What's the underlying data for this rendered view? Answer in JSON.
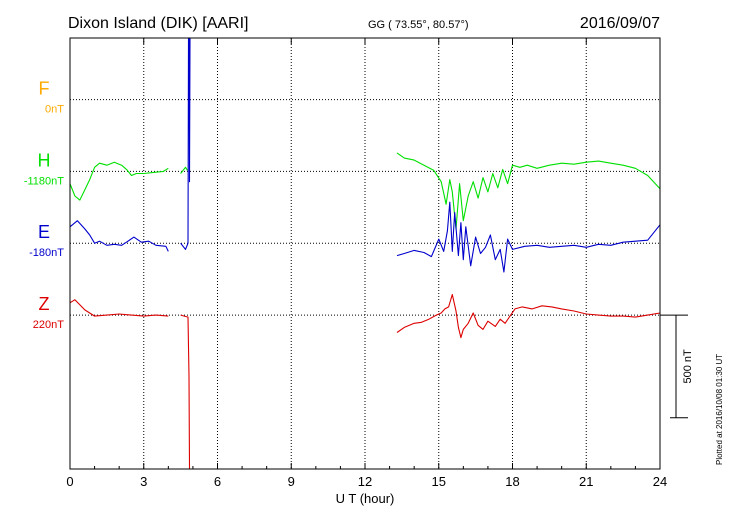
{
  "header": {
    "station": "Dixon Island (DIK)  [AARI]",
    "coords": "GG ( 73.55°,  80.57°)",
    "date": "2016/09/07"
  },
  "plotted_note": "Plotted at 2016/10/08 01:30 UT",
  "colors": {
    "F": "#ffaa00",
    "H": "#00e000",
    "E": "#0000cc",
    "Z": "#dd0000",
    "axis": "#000000",
    "grid": "#000000"
  },
  "chart_data": {
    "type": "line",
    "xlabel": "U T (hour)",
    "xlim": [
      0,
      24
    ],
    "xticks": [
      "0",
      "3",
      "6",
      "9",
      "12",
      "15",
      "18",
      "21",
      "24"
    ],
    "ylim": [
      -800,
      1300
    ],
    "scale_bar": {
      "label": "500 nT",
      "value_nT": 500
    },
    "grid": "dotted",
    "series": [
      {
        "name": "F",
        "baseline": "0nT",
        "offset": 1000,
        "points": []
      },
      {
        "name": "H",
        "baseline": "-1180nT",
        "offset": 650,
        "points": [
          [
            0,
            -60
          ],
          [
            0.2,
            -120
          ],
          [
            0.4,
            -140
          ],
          [
            0.6,
            -90
          ],
          [
            0.8,
            -40
          ],
          [
            1.0,
            20
          ],
          [
            1.2,
            40
          ],
          [
            1.5,
            30
          ],
          [
            1.8,
            45
          ],
          [
            2.1,
            30
          ],
          [
            2.3,
            10
          ],
          [
            2.5,
            -20
          ],
          [
            2.7,
            -10
          ],
          [
            3.0,
            -10
          ],
          [
            3.4,
            -5
          ],
          [
            3.8,
            0
          ],
          [
            4.0,
            15
          ],
          null,
          [
            4.5,
            -10
          ],
          [
            4.7,
            20
          ],
          [
            4.78,
            5
          ],
          null,
          [
            13.3,
            90
          ],
          [
            13.6,
            65
          ],
          [
            14.0,
            55
          ],
          [
            14.4,
            30
          ],
          [
            14.8,
            5
          ],
          [
            15.1,
            -50
          ],
          [
            15.3,
            -160
          ],
          [
            15.45,
            -40
          ],
          [
            15.55,
            -100
          ],
          [
            15.7,
            -280
          ],
          [
            15.85,
            -60
          ],
          [
            16.0,
            -240
          ],
          [
            16.2,
            -120
          ],
          [
            16.4,
            -50
          ],
          [
            16.6,
            -130
          ],
          [
            16.8,
            -30
          ],
          [
            17.0,
            -100
          ],
          [
            17.2,
            -10
          ],
          [
            17.4,
            -80
          ],
          [
            17.6,
            10
          ],
          [
            17.8,
            -60
          ],
          [
            18.0,
            30
          ],
          [
            18.3,
            20
          ],
          [
            18.6,
            30
          ],
          [
            19.0,
            15
          ],
          [
            19.5,
            30
          ],
          [
            20.0,
            40
          ],
          [
            20.5,
            35
          ],
          [
            21.0,
            45
          ],
          [
            21.5,
            50
          ],
          [
            22.0,
            40
          ],
          [
            22.5,
            30
          ],
          [
            23.0,
            15
          ],
          [
            23.5,
            -20
          ],
          [
            24.0,
            -85
          ]
        ]
      },
      {
        "name": "E",
        "baseline": "-180nT",
        "offset": 300,
        "points": [
          [
            0,
            80
          ],
          [
            0.3,
            110
          ],
          [
            0.6,
            70
          ],
          [
            0.8,
            40
          ],
          [
            1.0,
            0
          ],
          [
            1.2,
            10
          ],
          [
            1.5,
            -10
          ],
          [
            1.8,
            -5
          ],
          [
            2.1,
            -10
          ],
          [
            2.3,
            5
          ],
          [
            2.6,
            30
          ],
          [
            2.9,
            5
          ],
          [
            3.2,
            10
          ],
          [
            3.5,
            -10
          ],
          [
            3.9,
            -15
          ],
          [
            4.0,
            -40
          ],
          null,
          [
            4.5,
            0
          ],
          [
            4.7,
            -30
          ],
          [
            4.8,
            0
          ],
          [
            4.82,
            1030
          ],
          [
            4.84,
            600
          ],
          [
            4.85,
            1100
          ],
          [
            4.86,
            300
          ],
          [
            4.88,
            1250
          ],
          null,
          [
            13.3,
            -60
          ],
          [
            13.6,
            -50
          ],
          [
            14.0,
            -35
          ],
          [
            14.4,
            -45
          ],
          [
            14.7,
            -65
          ],
          [
            15.0,
            20
          ],
          [
            15.2,
            -40
          ],
          [
            15.35,
            60
          ],
          [
            15.45,
            200
          ],
          [
            15.55,
            -40
          ],
          [
            15.65,
            150
          ],
          [
            15.8,
            -60
          ],
          [
            15.9,
            100
          ],
          [
            16.0,
            -80
          ],
          [
            16.1,
            80
          ],
          [
            16.3,
            -110
          ],
          [
            16.5,
            30
          ],
          [
            16.7,
            -50
          ],
          [
            16.9,
            -20
          ],
          [
            17.1,
            40
          ],
          [
            17.3,
            -80
          ],
          [
            17.5,
            -30
          ],
          [
            17.65,
            -140
          ],
          [
            17.8,
            20
          ],
          [
            18.0,
            -30
          ],
          [
            18.5,
            -15
          ],
          [
            19.0,
            -10
          ],
          [
            19.5,
            -20
          ],
          [
            20.0,
            -15
          ],
          [
            20.5,
            -10
          ],
          [
            21.0,
            -20
          ],
          [
            21.5,
            -5
          ],
          [
            22.0,
            -10
          ],
          [
            22.5,
            5
          ],
          [
            23.0,
            10
          ],
          [
            23.5,
            15
          ],
          [
            24.0,
            90
          ]
        ]
      },
      {
        "name": "Z",
        "baseline": "220nT",
        "offset": -50,
        "points": [
          [
            0,
            60
          ],
          [
            0.2,
            75
          ],
          [
            0.4,
            50
          ],
          [
            0.6,
            25
          ],
          [
            0.8,
            10
          ],
          [
            1.0,
            -5
          ],
          [
            1.5,
            0
          ],
          [
            2.0,
            5
          ],
          [
            2.5,
            0
          ],
          [
            3.0,
            -5
          ],
          [
            3.5,
            0
          ],
          [
            4.0,
            -5
          ],
          null,
          [
            4.5,
            0
          ],
          [
            4.8,
            -10
          ],
          [
            4.84,
            -300
          ],
          [
            4.86,
            -900
          ],
          null,
          [
            13.3,
            -85
          ],
          [
            13.6,
            -60
          ],
          [
            14.0,
            -40
          ],
          [
            14.3,
            -35
          ],
          [
            14.6,
            -20
          ],
          [
            14.9,
            0
          ],
          [
            15.1,
            10
          ],
          [
            15.25,
            30
          ],
          [
            15.4,
            40
          ],
          [
            15.55,
            100
          ],
          [
            15.7,
            20
          ],
          [
            15.8,
            -60
          ],
          [
            15.9,
            -110
          ],
          [
            16.0,
            -70
          ],
          [
            16.2,
            -40
          ],
          [
            16.4,
            10
          ],
          [
            16.6,
            -50
          ],
          [
            16.8,
            -70
          ],
          [
            17.0,
            -30
          ],
          [
            17.3,
            -55
          ],
          [
            17.5,
            -20
          ],
          [
            17.7,
            -40
          ],
          [
            17.9,
            -5
          ],
          [
            18.1,
            30
          ],
          [
            18.4,
            40
          ],
          [
            18.8,
            30
          ],
          [
            19.2,
            45
          ],
          [
            19.6,
            40
          ],
          [
            20.0,
            30
          ],
          [
            20.5,
            20
          ],
          [
            21.0,
            5
          ],
          [
            21.5,
            0
          ],
          [
            22.0,
            -5
          ],
          [
            22.5,
            -5
          ],
          [
            23.0,
            -10
          ],
          [
            23.5,
            0
          ],
          [
            24.0,
            10
          ]
        ]
      }
    ]
  }
}
